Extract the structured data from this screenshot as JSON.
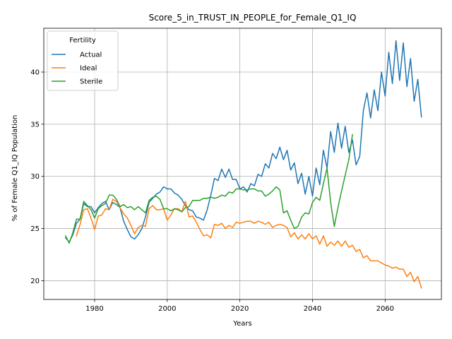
{
  "chart_data": {
    "type": "line",
    "title": "Score_5_in_TRUST_IN_PEOPLE_for_Female_Q1_IQ",
    "xlabel": "Years",
    "ylabel": "% of Female Q1_IQ Population",
    "xlim": [
      1966,
      2075.5
    ],
    "ylim": [
      18.2,
      44.2
    ],
    "xticks": [
      1980,
      2000,
      2020,
      2040,
      2060
    ],
    "yticks": [
      20,
      25,
      30,
      35,
      40
    ],
    "grid": true,
    "legend": {
      "title": "Fertility",
      "placement": "top-left"
    },
    "series": [
      {
        "name": "Actual",
        "color": "#1f77b4",
        "x": [
          1972,
          1973,
          1974,
          1975,
          1976,
          1977,
          1978,
          1979,
          1980,
          1981,
          1982,
          1983,
          1984,
          1985,
          1986,
          1987,
          1988,
          1989,
          1990,
          1991,
          1992,
          1993,
          1994,
          1995,
          1996,
          1997,
          1998,
          1999,
          2000,
          2001,
          2002,
          2003,
          2004,
          2005,
          2006,
          2007,
          2008,
          2009,
          2010,
          2011,
          2012,
          2013,
          2014,
          2015,
          2016,
          2017,
          2018,
          2019,
          2020,
          2021,
          2022,
          2023,
          2024,
          2025,
          2026,
          2027,
          2028,
          2029,
          2030,
          2031,
          2032,
          2033,
          2034,
          2035,
          2036,
          2037,
          2038,
          2039,
          2040,
          2041,
          2042,
          2043,
          2044,
          2045,
          2046,
          2047,
          2048,
          2049,
          2050,
          2051,
          2052,
          2053,
          2054,
          2055,
          2056,
          2057,
          2058,
          2059,
          2060,
          2061,
          2062,
          2063,
          2064,
          2065,
          2066,
          2067,
          2068,
          2069,
          2070
        ],
        "values": [
          24.1,
          23.7,
          24.4,
          25.5,
          25.9,
          27.4,
          27.1,
          27.1,
          26.5,
          27.0,
          27.4,
          27.6,
          26.8,
          27.5,
          27.3,
          27.0,
          25.7,
          24.9,
          24.2,
          24.0,
          24.4,
          25.0,
          26.1,
          27.5,
          27.9,
          28.3,
          28.5,
          29.0,
          28.8,
          28.8,
          28.4,
          28.2,
          27.8,
          27.2,
          26.8,
          26.7,
          26.1,
          26.0,
          25.8,
          26.8,
          28.2,
          29.8,
          29.6,
          30.7,
          29.9,
          30.7,
          29.7,
          29.7,
          28.8,
          29.0,
          28.5,
          29.3,
          29.1,
          30.2,
          30.0,
          31.2,
          30.8,
          32.2,
          31.7,
          32.8,
          31.6,
          32.5,
          30.6,
          31.3,
          29.3,
          30.3,
          28.3,
          30.0,
          28.1,
          30.8,
          29.2,
          32.5,
          30.8,
          34.3,
          32.3,
          35.1,
          32.7,
          34.8,
          32.3,
          33.5,
          31.1,
          31.9,
          36.3,
          38.0,
          35.6,
          38.3,
          36.3,
          40.0,
          37.7,
          41.9,
          38.9,
          43.0,
          39.2,
          42.8,
          38.6,
          41.3,
          37.2,
          39.3,
          35.7
        ]
      },
      {
        "name": "Ideal",
        "color": "#ff7f0e",
        "x": [
          1975,
          1976,
          1977,
          1978,
          1979,
          1980,
          1981,
          1982,
          1983,
          1984,
          1985,
          1986,
          1987,
          1988,
          1989,
          1990,
          1991,
          1992,
          1993,
          1994,
          1995,
          1996,
          1997,
          1998,
          1999,
          2000,
          2001,
          2002,
          2003,
          2004,
          2005,
          2006,
          2007,
          2008,
          2009,
          2010,
          2011,
          2012,
          2013,
          2014,
          2015,
          2016,
          2017,
          2018,
          2019,
          2020,
          2021,
          2022,
          2023,
          2024,
          2025,
          2026,
          2027,
          2028,
          2029,
          2030,
          2031,
          2032,
          2033,
          2034,
          2035,
          2036,
          2037,
          2038,
          2039,
          2040,
          2041,
          2042,
          2043,
          2044,
          2045,
          2046,
          2047,
          2048,
          2049,
          2050,
          2051,
          2052,
          2053,
          2054,
          2055,
          2056,
          2057,
          2058,
          2059,
          2060,
          2061,
          2062,
          2063,
          2064,
          2065,
          2066,
          2067,
          2068,
          2069,
          2070
        ],
        "values": [
          24.3,
          25.4,
          26.8,
          26.9,
          26.0,
          24.9,
          26.2,
          26.3,
          26.9,
          26.8,
          27.8,
          27.6,
          27.0,
          26.4,
          26.0,
          25.3,
          24.5,
          25.1,
          25.3,
          25.2,
          26.9,
          27.2,
          26.8,
          26.8,
          26.9,
          25.8,
          26.3,
          26.9,
          26.9,
          26.6,
          27.6,
          26.1,
          26.2,
          25.6,
          24.9,
          24.3,
          24.4,
          24.1,
          25.4,
          25.3,
          25.5,
          25.0,
          25.3,
          25.1,
          25.6,
          25.5,
          25.6,
          25.7,
          25.7,
          25.5,
          25.7,
          25.6,
          25.4,
          25.6,
          25.1,
          25.3,
          25.4,
          25.3,
          25.1,
          24.2,
          24.6,
          24.0,
          24.4,
          24.0,
          24.5,
          24.0,
          24.3,
          23.5,
          24.3,
          23.3,
          23.7,
          23.4,
          23.8,
          23.3,
          23.8,
          23.2,
          23.4,
          22.8,
          23.0,
          22.2,
          22.4,
          21.9,
          21.9,
          21.9,
          21.7,
          21.5,
          21.4,
          21.2,
          21.3,
          21.1,
          21.1,
          20.4,
          20.8,
          19.9,
          20.4,
          19.3
        ]
      },
      {
        "name": "Sterile",
        "color": "#2ca02c",
        "x": [
          1972,
          1973,
          1974,
          1975,
          1976,
          1977,
          1978,
          1979,
          1980,
          1981,
          1982,
          1983,
          1984,
          1985,
          1986,
          1987,
          1988,
          1989,
          1990,
          1991,
          1992,
          1993,
          1994,
          1995,
          1996,
          1997,
          1998,
          1999,
          2000,
          2001,
          2002,
          2003,
          2004,
          2005,
          2006,
          2007,
          2008,
          2009,
          2010,
          2011,
          2012,
          2013,
          2014,
          2015,
          2016,
          2017,
          2018,
          2019,
          2020,
          2021,
          2022,
          2023,
          2024,
          2025,
          2026,
          2027,
          2028,
          2029,
          2030,
          2031,
          2032,
          2033,
          2034,
          2035,
          2036,
          2037,
          2038,
          2039,
          2040,
          2041,
          2042,
          2043,
          2044,
          2045,
          2046,
          2047,
          2048,
          2049,
          2050,
          2051
        ],
        "values": [
          24.3,
          23.6,
          24.6,
          25.9,
          25.9,
          27.6,
          27.2,
          26.8,
          26.0,
          26.9,
          27.2,
          27.4,
          28.2,
          28.2,
          27.8,
          27.1,
          27.3,
          27.0,
          27.1,
          26.8,
          27.1,
          26.8,
          26.5,
          27.7,
          28.0,
          28.1,
          27.8,
          26.9,
          26.9,
          26.7,
          26.9,
          26.8,
          26.6,
          27.0,
          27.1,
          27.7,
          27.7,
          27.7,
          27.9,
          27.9,
          28.0,
          27.9,
          28.0,
          28.2,
          28.1,
          28.5,
          28.4,
          28.8,
          28.8,
          28.7,
          28.7,
          28.8,
          28.8,
          28.6,
          28.6,
          28.1,
          28.3,
          28.6,
          29.0,
          28.7,
          26.5,
          26.7,
          25.8,
          25.0,
          25.2,
          26.1,
          26.5,
          26.4,
          27.5,
          28.0,
          27.7,
          29.3,
          30.8,
          27.5,
          25.2,
          27.0,
          28.6,
          30.1,
          31.6,
          34.0
        ]
      }
    ]
  }
}
